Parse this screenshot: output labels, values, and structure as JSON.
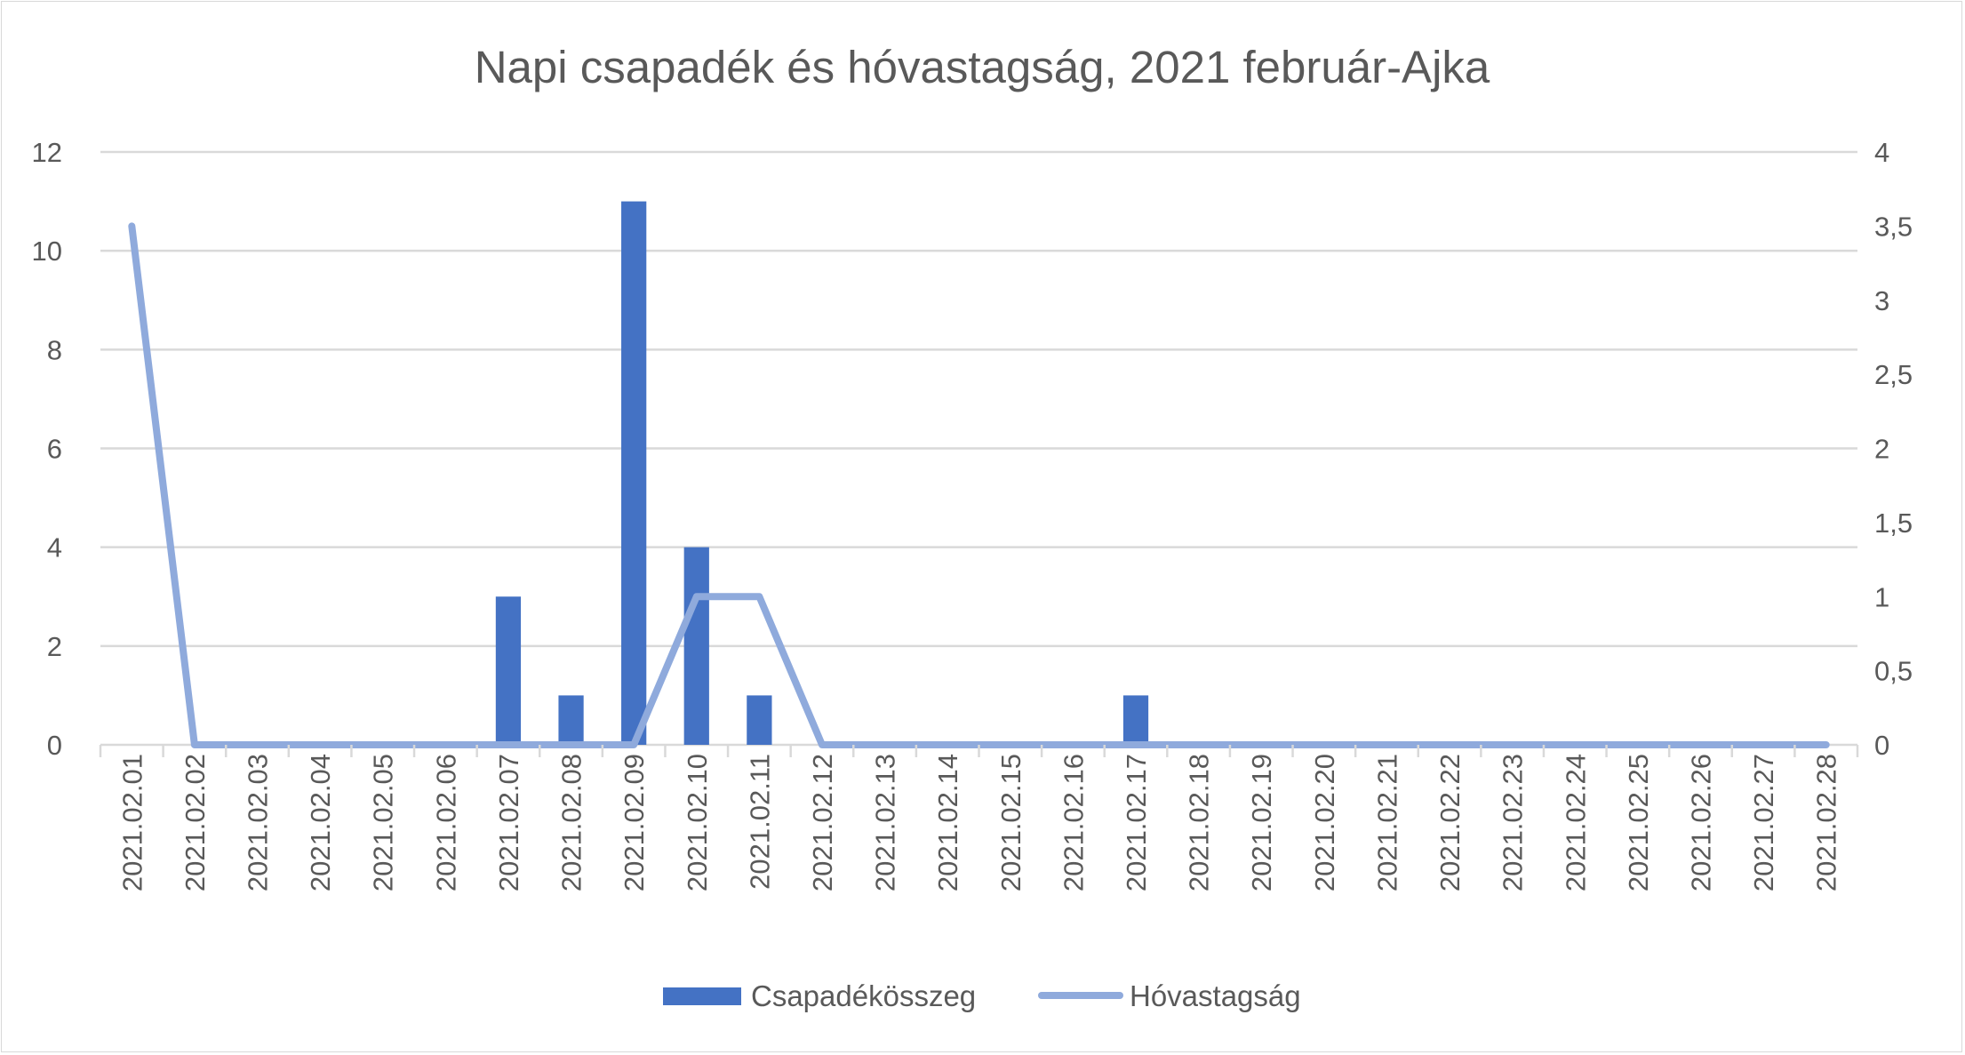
{
  "chart_data": {
    "type": "bar+line",
    "title": "Napi csapadék és hóvastagság, 2021 február-Ajka",
    "categories": [
      "2021.02.01",
      "2021.02.02",
      "2021.02.03",
      "2021.02.04",
      "2021.02.05",
      "2021.02.06",
      "2021.02.07",
      "2021.02.08",
      "2021.02.09",
      "2021.02.10",
      "2021.02.11",
      "2021.02.12",
      "2021.02.13",
      "2021.02.14",
      "2021.02.15",
      "2021.02.16",
      "2021.02.17",
      "2021.02.18",
      "2021.02.19",
      "2021.02.20",
      "2021.02.21",
      "2021.02.22",
      "2021.02.23",
      "2021.02.24",
      "2021.02.25",
      "2021.02.26",
      "2021.02.27",
      "2021.02.28"
    ],
    "series": [
      {
        "name": "Csapadékösszeg",
        "type": "bar",
        "axis": "left",
        "color": "#4472c4",
        "values": [
          0,
          0,
          0,
          0,
          0,
          0,
          3,
          1,
          11,
          4,
          1,
          0,
          0,
          0,
          0,
          0,
          1,
          0,
          0,
          0,
          0,
          0,
          0,
          0,
          0,
          0,
          0,
          0
        ]
      },
      {
        "name": "Hóvastagság",
        "type": "line",
        "axis": "right",
        "color": "#8faadc",
        "values": [
          3.5,
          0,
          0,
          0,
          0,
          0,
          0,
          0,
          0,
          1,
          1,
          0,
          0,
          0,
          0,
          0,
          0,
          0,
          0,
          0,
          0,
          0,
          0,
          0,
          0,
          0,
          0,
          0
        ]
      }
    ],
    "y_left": {
      "range": [
        0,
        12
      ],
      "ticks": [
        "0",
        "2",
        "4",
        "6",
        "8",
        "10",
        "12"
      ]
    },
    "y_right": {
      "range": [
        0,
        4
      ],
      "ticks": [
        "0",
        "0,5",
        "1",
        "1,5",
        "2",
        "2,5",
        "3",
        "3,5",
        "4"
      ]
    },
    "grid": true,
    "legend": "bottom"
  }
}
